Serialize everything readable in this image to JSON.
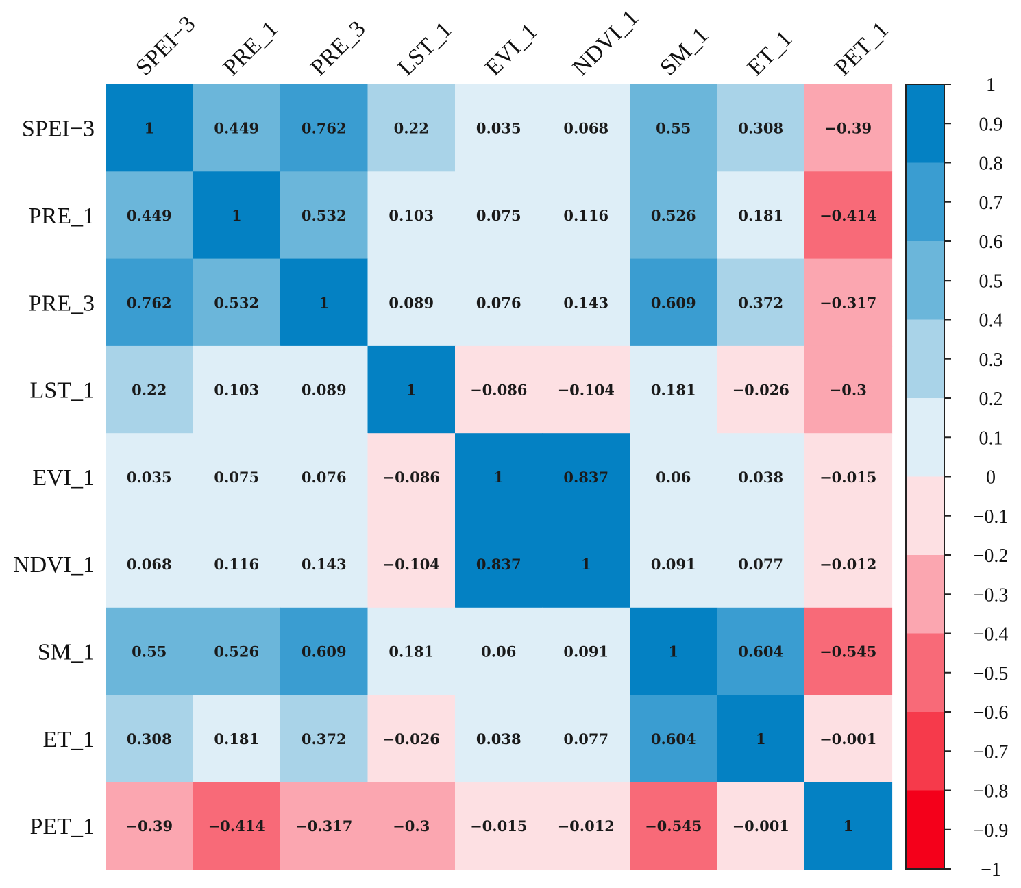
{
  "chart_data": {
    "type": "heatmap",
    "title": "",
    "variables": [
      "SPEI−3",
      "PRE_1",
      "PRE_3",
      "LST_1",
      "EVI_1",
      "NDVI_1",
      "SM_1",
      "ET_1",
      "PET_1"
    ],
    "column_labels": [
      "SPEI−3",
      "PRE_1",
      "PRE_3",
      "LST_1",
      "EVI_1",
      "NDVI_1",
      "SM_1",
      "ET_1",
      "PET_1"
    ],
    "matrix": [
      [
        1,
        0.449,
        0.762,
        0.22,
        0.035,
        0.068,
        0.55,
        0.308,
        -0.39
      ],
      [
        0.449,
        1,
        0.532,
        0.103,
        0.075,
        0.116,
        0.526,
        0.181,
        -0.414
      ],
      [
        0.762,
        0.532,
        1,
        0.089,
        0.076,
        0.143,
        0.609,
        0.372,
        -0.317
      ],
      [
        0.22,
        0.103,
        0.089,
        1,
        -0.086,
        -0.104,
        0.181,
        -0.026,
        -0.3
      ],
      [
        0.035,
        0.075,
        0.076,
        -0.086,
        1,
        0.837,
        0.06,
        0.038,
        -0.015
      ],
      [
        0.068,
        0.116,
        0.143,
        -0.104,
        0.837,
        1,
        0.091,
        0.077,
        -0.012
      ],
      [
        0.55,
        0.526,
        0.609,
        0.181,
        0.06,
        0.091,
        1,
        0.604,
        -0.545
      ],
      [
        0.308,
        0.181,
        0.372,
        -0.026,
        0.038,
        0.077,
        0.604,
        1,
        -0.001
      ],
      [
        -0.39,
        -0.414,
        -0.317,
        -0.3,
        -0.015,
        -0.012,
        -0.545,
        -0.001,
        1
      ]
    ],
    "labels": [
      [
        "1",
        "0.449",
        "0.762",
        "0.22",
        "0.035",
        "0.068",
        "0.55",
        "0.308",
        "−0.39"
      ],
      [
        "0.449",
        "1",
        "0.532",
        "0.103",
        "0.075",
        "0.116",
        "0.526",
        "0.181",
        "−0.414"
      ],
      [
        "0.762",
        "0.532",
        "1",
        "0.089",
        "0.076",
        "0.143",
        "0.609",
        "0.372",
        "−0.317"
      ],
      [
        "0.22",
        "0.103",
        "0.089",
        "1",
        "−0.086",
        "−0.104",
        "0.181",
        "−0.026",
        "−0.3"
      ],
      [
        "0.035",
        "0.075",
        "0.076",
        "−0.086",
        "1",
        "0.837",
        "0.06",
        "0.038",
        "−0.015"
      ],
      [
        "0.068",
        "0.116",
        "0.143",
        "−0.104",
        "0.837",
        "1",
        "0.091",
        "0.077",
        "−0.012"
      ],
      [
        "0.55",
        "0.526",
        "0.609",
        "0.181",
        "0.06",
        "0.091",
        "1",
        "0.604",
        "−0.545"
      ],
      [
        "0.308",
        "0.181",
        "0.372",
        "−0.026",
        "0.038",
        "0.077",
        "0.604",
        "1",
        "−0.001"
      ],
      [
        "−0.39",
        "−0.414",
        "−0.317",
        "−0.3",
        "−0.015",
        "−0.012",
        "−0.545",
        "−0.001",
        "1"
      ]
    ],
    "colorbar": {
      "range": [
        -1,
        1
      ],
      "ticks": [
        "1",
        "0.9",
        "0.8",
        "0.7",
        "0.6",
        "0.5",
        "0.4",
        "0.3",
        "0.2",
        "0.1",
        "0",
        "−0.1",
        "−0.2",
        "−0.3",
        "−0.4",
        "−0.5",
        "−0.6",
        "−0.7",
        "−0.8",
        "−0.9",
        "−1"
      ],
      "bins": [
        {
          "min": 0.8,
          "max": 1.0,
          "color": "#0481c3"
        },
        {
          "min": 0.6,
          "max": 0.8,
          "color": "#3a9dd1"
        },
        {
          "min": 0.4,
          "max": 0.6,
          "color": "#6bb6da"
        },
        {
          "min": 0.2,
          "max": 0.4,
          "color": "#a9d3e8"
        },
        {
          "min": 0.0,
          "max": 0.2,
          "color": "#deeef7"
        },
        {
          "min": -0.2,
          "max": 0.0,
          "color": "#fde0e3"
        },
        {
          "min": -0.4,
          "max": -0.2,
          "color": "#fba6b0"
        },
        {
          "min": -0.6,
          "max": -0.4,
          "color": "#f86a78"
        },
        {
          "min": -0.8,
          "max": -0.6,
          "color": "#f63a4b"
        },
        {
          "min": -1.0,
          "max": -0.8,
          "color": "#f4001a"
        }
      ]
    }
  }
}
